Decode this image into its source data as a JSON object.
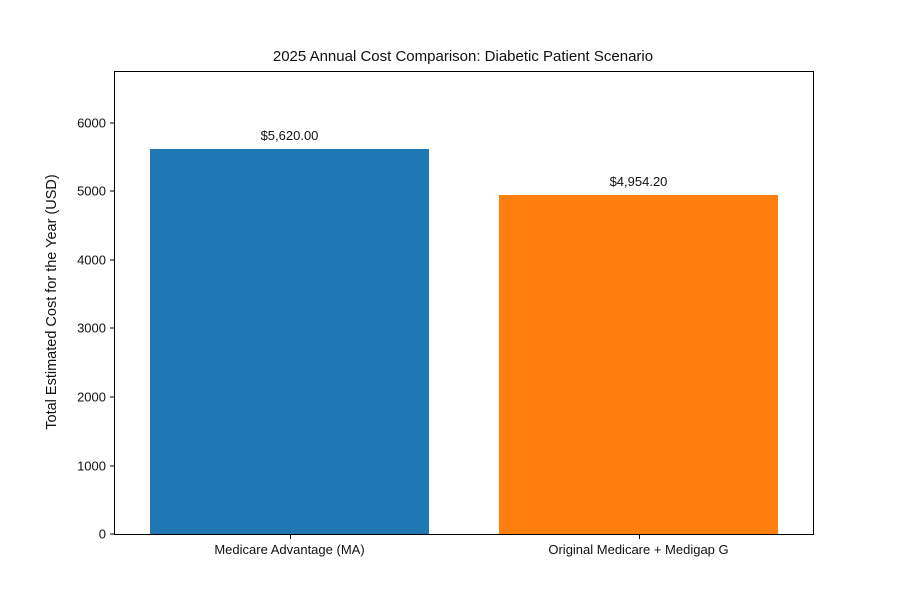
{
  "chart_data": {
    "type": "bar",
    "title": "2025 Annual Cost Comparison: Diabetic Patient Scenario",
    "xlabel": "",
    "ylabel": "Total Estimated Cost for the Year (USD)",
    "categories": [
      "Medicare Advantage (MA)",
      "Original Medicare + Medigap G"
    ],
    "values": [
      5620.0,
      4954.2
    ],
    "bar_labels": [
      "$5,620.00",
      "$4,954.20"
    ],
    "bar_colors": [
      "#1f77b4",
      "#ff7f0e"
    ],
    "yticks": [
      0,
      1000,
      2000,
      3000,
      4000,
      5000,
      6000
    ],
    "ytick_labels": [
      "0",
      "1000",
      "2000",
      "3000",
      "4000",
      "5000",
      "6000"
    ],
    "ylim": [
      0,
      6744
    ],
    "bar_width_fraction": 0.8,
    "grid": false,
    "legend": null,
    "background_color": "#ffffff",
    "frame_color": "#000000"
  }
}
